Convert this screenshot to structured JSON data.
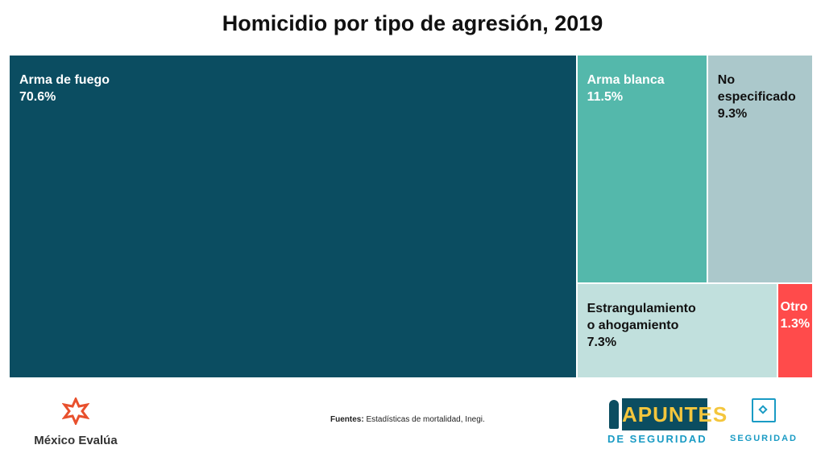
{
  "chart_data": {
    "type": "treemap",
    "title": "Homicidio por tipo de agresión, 2019",
    "items": [
      {
        "label": "Arma de fuego",
        "value": 70.6,
        "value_label": "70.6%",
        "color": "#0b4d61",
        "text_color": "#ffffff"
      },
      {
        "label": "Arma blanca",
        "value": 11.5,
        "value_label": "11.5%",
        "color": "#54b8ab",
        "text_color": "#ffffff"
      },
      {
        "label": "No\nespecificado",
        "value": 9.3,
        "value_label": "9.3%",
        "color": "#abc8cb",
        "text_color": "#111111"
      },
      {
        "label": "Estrangulamiento\no ahogamiento",
        "value": 7.3,
        "value_label": "7.3%",
        "color": "#c1e0dd",
        "text_color": "#111111"
      },
      {
        "label": "Otro",
        "value": 1.3,
        "value_label": "1.3%",
        "color": "#ff4b4b",
        "text_color": "#ffffff"
      }
    ]
  },
  "footer": {
    "source_bold": "Fuentes:",
    "source_text": " Estadísticas de mortalidad, Inegi.",
    "logo_mexico_evalua": "México Evalúa",
    "logo_apuntes": "APUNTES",
    "logo_apuntes_sub": "DE SEGURIDAD",
    "logo_seguridad": "SEGURIDAD"
  }
}
